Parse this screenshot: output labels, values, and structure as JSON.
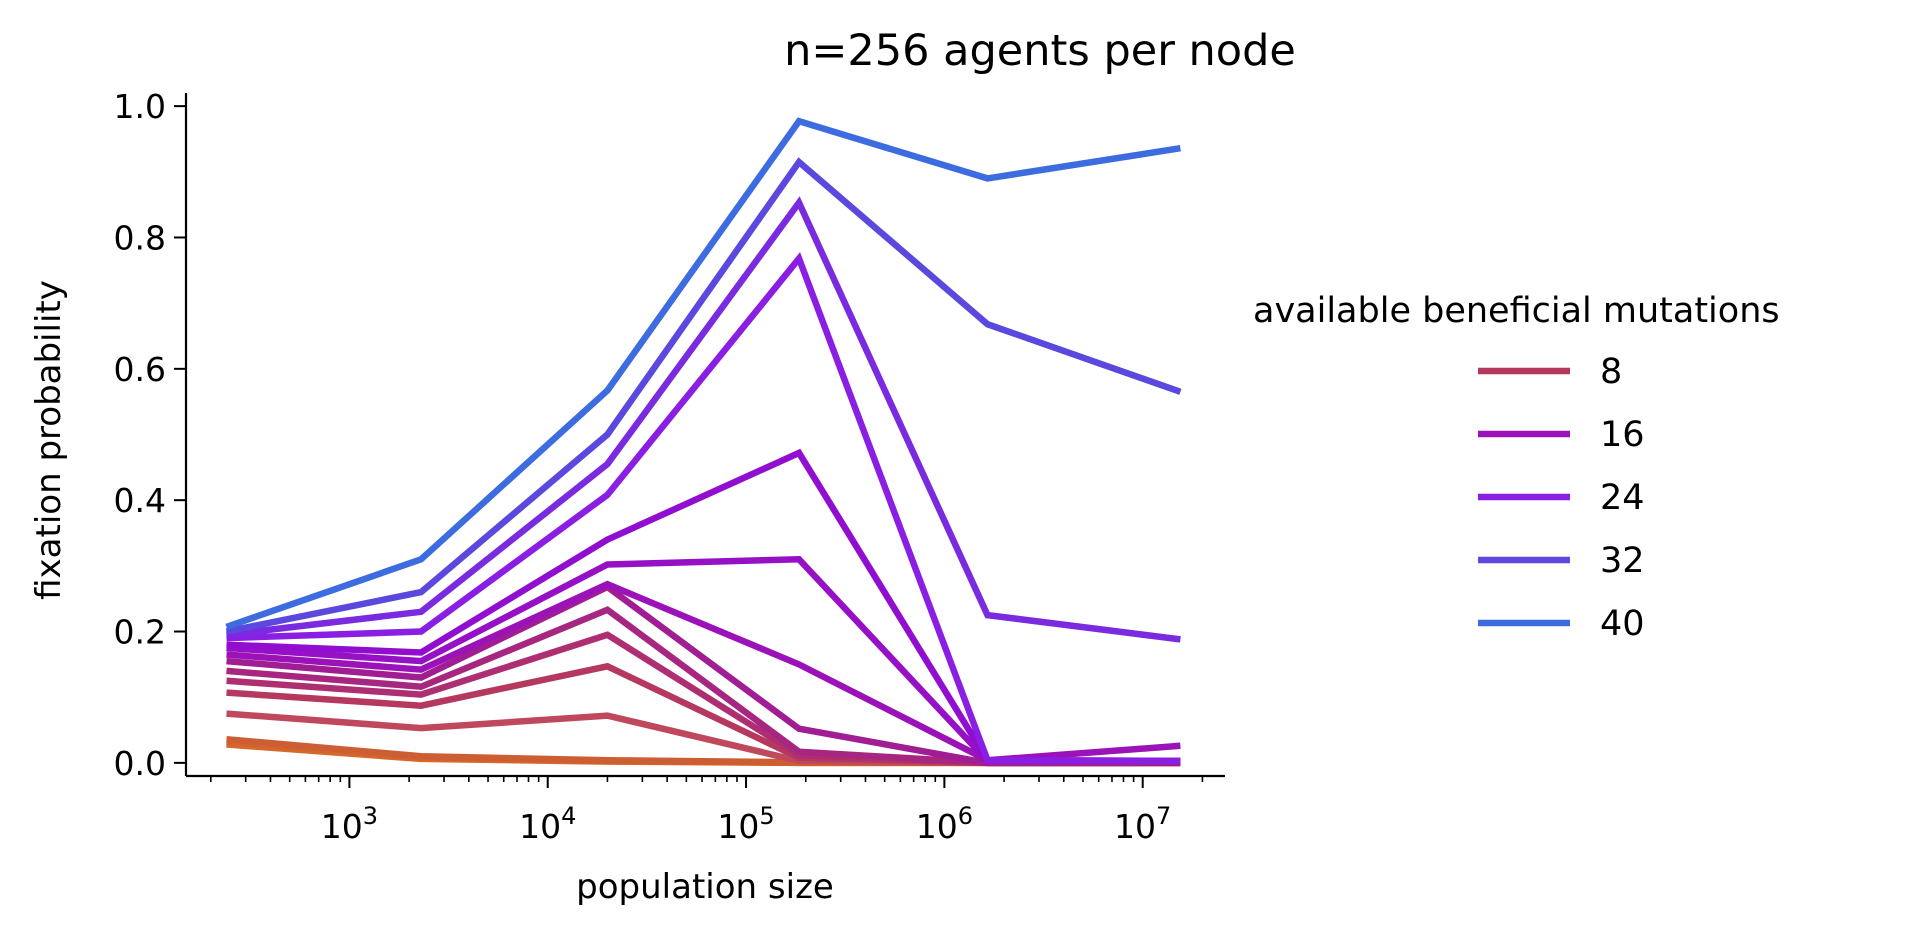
{
  "chart_data": {
    "type": "line",
    "title": "n=256 agents per node",
    "xlabel": "population size",
    "ylabel": "fixation probability",
    "x_scale": "log",
    "xlim": [
      150,
      26000000
    ],
    "ylim": [
      -0.02,
      1.02
    ],
    "x_ticks": [
      {
        "value": 1000,
        "base": "10",
        "exp": "3"
      },
      {
        "value": 10000,
        "base": "10",
        "exp": "4"
      },
      {
        "value": 100000,
        "base": "10",
        "exp": "5"
      },
      {
        "value": 1000000,
        "base": "10",
        "exp": "6"
      },
      {
        "value": 10000000,
        "base": "10",
        "exp": "7"
      }
    ],
    "y_ticks": [
      {
        "value": 0.0,
        "label": "0.0"
      },
      {
        "value": 0.2,
        "label": "0.2"
      },
      {
        "value": 0.4,
        "label": "0.4"
      },
      {
        "value": 0.6,
        "label": "0.6"
      },
      {
        "value": 0.8,
        "label": "0.8"
      },
      {
        "value": 1.0,
        "label": "1.0"
      }
    ],
    "grid": false,
    "legend": {
      "title": "available beneficial mutations",
      "placement": "right",
      "entries": [
        {
          "label": "8",
          "color": "#b5395e"
        },
        {
          "label": "16",
          "color": "#9b13b8"
        },
        {
          "label": "24",
          "color": "#8a1ee3"
        },
        {
          "label": "32",
          "color": "#5b48de"
        },
        {
          "label": "40",
          "color": "#3d6be0"
        }
      ]
    },
    "x": [
      240,
      2300,
      20000,
      185000,
      1650000,
      15500000
    ],
    "series": [
      {
        "color": "#d76a2a",
        "values": [
          0.028,
          0.006,
          0.002,
          0.0,
          0.0,
          0.0
        ]
      },
      {
        "color": "#d2642e",
        "values": [
          0.032,
          0.008,
          0.003,
          0.0,
          0.0,
          0.0
        ]
      },
      {
        "color": "#cd5e33",
        "values": [
          0.036,
          0.01,
          0.004,
          0.001,
          0.0,
          0.0
        ]
      },
      {
        "color": "#c0485c",
        "values": [
          0.075,
          0.053,
          0.072,
          0.003,
          0.0,
          0.0
        ]
      },
      {
        "color": "#b5395e",
        "values": [
          0.107,
          0.087,
          0.147,
          0.008,
          0.0,
          0.0
        ]
      },
      {
        "color": "#ad2f72",
        "values": [
          0.125,
          0.104,
          0.195,
          0.012,
          0.0,
          0.0
        ]
      },
      {
        "color": "#a72680",
        "values": [
          0.14,
          0.116,
          0.233,
          0.017,
          0.0,
          0.0
        ]
      },
      {
        "color": "#a11d93",
        "values": [
          0.155,
          0.13,
          0.268,
          0.052,
          0.0,
          0.0
        ]
      },
      {
        "color": "#9b13b8",
        "values": [
          0.165,
          0.142,
          0.272,
          0.15,
          0.004,
          0.026
        ]
      },
      {
        "color": "#9610c6",
        "values": [
          0.175,
          0.155,
          0.302,
          0.31,
          0.003,
          0.003
        ]
      },
      {
        "color": "#910ed0",
        "values": [
          0.18,
          0.168,
          0.34,
          0.472,
          0.004,
          0.003
        ]
      },
      {
        "color": "#8a1ee3",
        "values": [
          0.19,
          0.2,
          0.408,
          0.768,
          0.004,
          0.003
        ]
      },
      {
        "color": "#7a2adf",
        "values": [
          0.195,
          0.23,
          0.455,
          0.853,
          0.225,
          0.188
        ]
      },
      {
        "color": "#5b48de",
        "values": [
          0.2,
          0.26,
          0.5,
          0.915,
          0.668,
          0.565
        ]
      },
      {
        "color": "#3d6be0",
        "values": [
          0.207,
          0.31,
          0.567,
          0.977,
          0.89,
          0.936
        ]
      }
    ]
  }
}
